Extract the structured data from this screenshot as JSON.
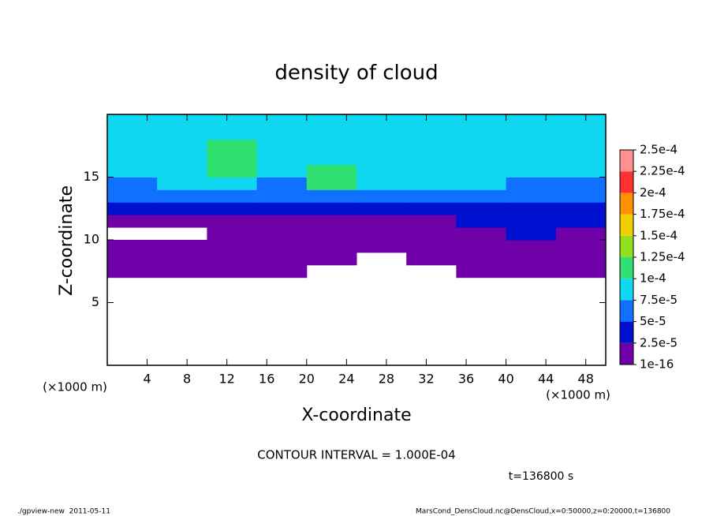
{
  "chart_data": {
    "type": "heatmap",
    "title": "density of cloud",
    "x_label": "X-coordinate",
    "y_label": "Z-coordinate",
    "x_unit": "(×1000 m)",
    "x_edges": [
      0,
      5,
      10,
      15,
      20,
      25,
      30,
      35,
      40,
      45,
      50
    ],
    "y_edges": [
      0,
      1,
      2,
      3,
      4,
      5,
      6,
      7,
      8,
      9,
      10,
      11,
      12,
      13,
      14,
      15,
      16,
      17,
      18,
      19,
      20
    ],
    "values": [
      [
        null,
        null,
        null,
        null,
        null,
        null,
        null,
        null,
        null,
        null
      ],
      [
        null,
        null,
        null,
        null,
        null,
        null,
        null,
        null,
        null,
        null
      ],
      [
        null,
        null,
        null,
        null,
        null,
        null,
        null,
        null,
        null,
        null
      ],
      [
        null,
        null,
        null,
        null,
        null,
        null,
        null,
        null,
        null,
        null
      ],
      [
        null,
        null,
        null,
        null,
        null,
        null,
        null,
        null,
        null,
        null
      ],
      [
        null,
        null,
        null,
        null,
        null,
        null,
        null,
        null,
        null,
        null
      ],
      [
        null,
        null,
        null,
        null,
        null,
        null,
        null,
        null,
        null,
        null
      ],
      [
        1e-16,
        1e-16,
        1e-16,
        1e-16,
        null,
        null,
        null,
        1e-16,
        1e-16,
        1e-16
      ],
      [
        1e-16,
        1e-16,
        1e-16,
        1e-16,
        1e-16,
        null,
        1e-16,
        1e-16,
        1e-16,
        1e-16
      ],
      [
        1e-16,
        1e-16,
        1e-16,
        1e-16,
        1e-16,
        1e-16,
        1e-16,
        1e-16,
        1e-16,
        1e-16
      ],
      [
        null,
        null,
        1e-16,
        1e-16,
        1e-16,
        1e-16,
        1e-16,
        1e-16,
        2.5e-05,
        1e-16
      ],
      [
        1e-16,
        1e-16,
        1e-16,
        1e-16,
        1e-16,
        1e-16,
        1e-16,
        2.5e-05,
        2.5e-05,
        2.5e-05
      ],
      [
        2.5e-05,
        2.5e-05,
        2.5e-05,
        2.5e-05,
        2.5e-05,
        2.5e-05,
        2.5e-05,
        2.5e-05,
        2.5e-05,
        2.5e-05
      ],
      [
        5e-05,
        5e-05,
        5e-05,
        5e-05,
        5e-05,
        5e-05,
        5e-05,
        5e-05,
        5e-05,
        5e-05
      ],
      [
        5e-05,
        7.5e-05,
        7.5e-05,
        5e-05,
        0.0001,
        7.5e-05,
        7.5e-05,
        7.5e-05,
        5e-05,
        5e-05
      ],
      [
        7.5e-05,
        7.5e-05,
        0.0001,
        7.5e-05,
        0.0001,
        7.5e-05,
        7.5e-05,
        7.5e-05,
        7.5e-05,
        7.5e-05
      ],
      [
        7.5e-05,
        7.5e-05,
        0.0001,
        7.5e-05,
        7.5e-05,
        7.5e-05,
        7.5e-05,
        7.5e-05,
        7.5e-05,
        7.5e-05
      ],
      [
        7.5e-05,
        7.5e-05,
        0.0001,
        7.5e-05,
        7.5e-05,
        7.5e-05,
        7.5e-05,
        7.5e-05,
        7.5e-05,
        7.5e-05
      ],
      [
        7.5e-05,
        7.5e-05,
        7.5e-05,
        7.5e-05,
        7.5e-05,
        7.5e-05,
        7.5e-05,
        7.5e-05,
        7.5e-05,
        7.5e-05
      ],
      [
        7.5e-05,
        7.5e-05,
        7.5e-05,
        7.5e-05,
        7.5e-05,
        7.5e-05,
        7.5e-05,
        7.5e-05,
        7.5e-05,
        7.5e-05
      ]
    ],
    "xlim": [
      0,
      50
    ],
    "ylim": [
      0,
      20
    ],
    "xticks": [
      4,
      8,
      12,
      16,
      20,
      24,
      28,
      32,
      36,
      40,
      44,
      48
    ],
    "yticks": [
      5,
      10,
      15
    ],
    "colorbar": {
      "ticks": [
        {
          "value": 1e-16,
          "label": "1e-16"
        },
        {
          "value": 2.5e-05,
          "label": "2.5e-5"
        },
        {
          "value": 5e-05,
          "label": "5e-5"
        },
        {
          "value": 7.5e-05,
          "label": "7.5e-5"
        },
        {
          "value": 0.0001,
          "label": "1e-4"
        },
        {
          "value": 0.000125,
          "label": "1.25e-4"
        },
        {
          "value": 0.00015,
          "label": "1.5e-4"
        },
        {
          "value": 0.000175,
          "label": "1.75e-4"
        },
        {
          "value": 0.0002,
          "label": "2e-4"
        },
        {
          "value": 0.000225,
          "label": "2.25e-4"
        },
        {
          "value": 0.00025,
          "label": "2.5e-4"
        }
      ],
      "colors": [
        "#7000a8",
        "#0010d0",
        "#1070ff",
        "#10d8f0",
        "#30e070",
        "#90e020",
        "#f0d000",
        "#ff9000",
        "#ff3030",
        "#ff9090"
      ]
    },
    "annotation": "CONTOUR INTERVAL = 1.000E-04",
    "time_label": "t=136800 s",
    "footer_left": "./gpview-new  2011-05-11",
    "footer_right": "MarsCond_DensCloud.nc@DensCloud,x=0:50000,z=0:20000,t=136800"
  }
}
